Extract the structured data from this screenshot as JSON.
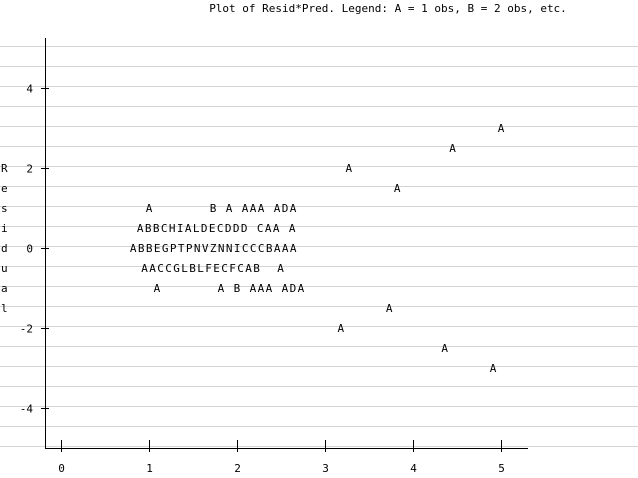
{
  "chart_data": {
    "type": "scatter",
    "title": "Plot of Resid*Pred.  Legend: A = 1 obs, B = 2 obs, etc.",
    "xlabel": "",
    "ylabel": "Residual",
    "xlim": [
      -0.2,
      5.3
    ],
    "ylim": [
      -4.95,
      5.05
    ],
    "x_ticks": [
      0,
      1,
      2,
      3,
      4,
      5
    ],
    "y_ticks": [
      -4,
      -2,
      0,
      2,
      4
    ],
    "grid": "horizontal",
    "legend": "A = 1 obs, B = 2 obs, etc.",
    "rows": [
      {
        "y": 3.0,
        "x": 5.0,
        "symbols": "A"
      },
      {
        "y": 2.5,
        "x": 4.45,
        "symbols": "A"
      },
      {
        "y": 2.0,
        "x": 3.27,
        "symbols": "A"
      },
      {
        "y": 1.5,
        "x": 3.82,
        "symbols": "A"
      },
      {
        "y": 1.0,
        "x": 1.0,
        "symbols": "A       B A AAA ADA"
      },
      {
        "y": 0.5,
        "x": 0.9,
        "symbols": "ABBCHIALDECDDD CAA A"
      },
      {
        "y": 0.0,
        "x": 0.82,
        "symbols": "ABBEGPTPNVZNNICCCBAAA"
      },
      {
        "y": -0.5,
        "x": 0.95,
        "symbols": "AACCGLBLFECFCAB  A"
      },
      {
        "y": -1.0,
        "x": 1.09,
        "symbols": "A       A B AAA ADA"
      },
      {
        "y": -1.5,
        "x": 3.73,
        "symbols": "A"
      },
      {
        "y": -2.0,
        "x": 3.18,
        "symbols": "A"
      },
      {
        "y": -2.5,
        "x": 4.36,
        "symbols": "A"
      },
      {
        "y": -3.0,
        "x": 4.91,
        "symbols": "A"
      }
    ]
  }
}
